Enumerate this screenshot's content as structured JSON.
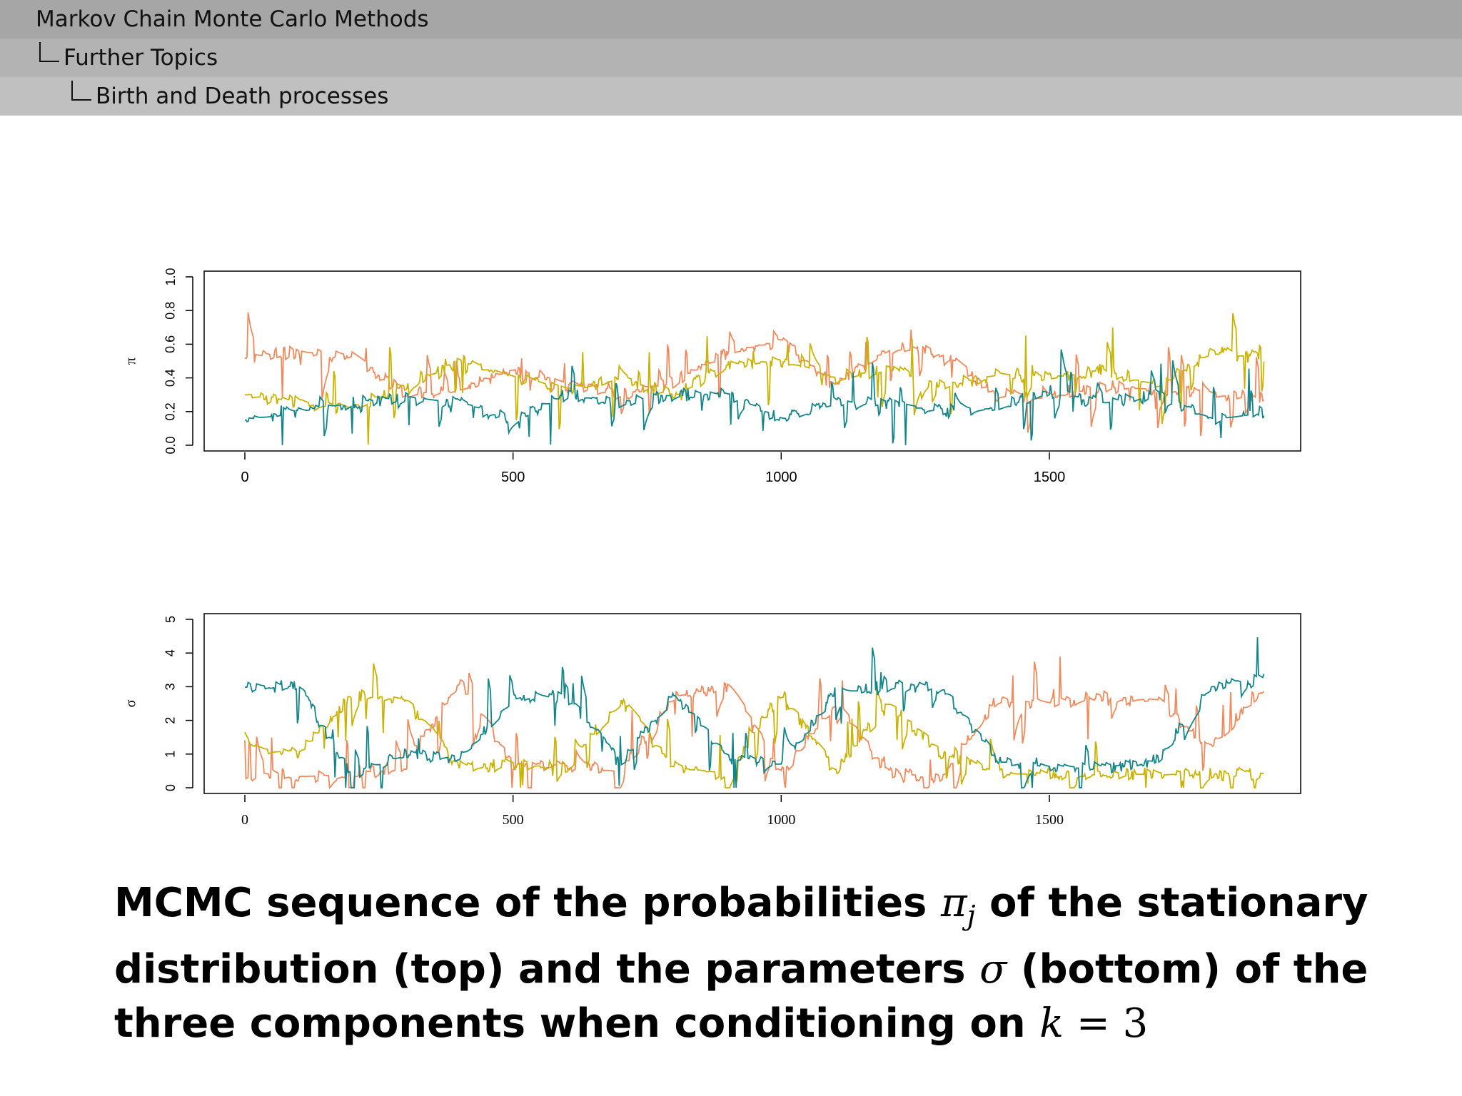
{
  "header": {
    "section": "Markov Chain Monte Carlo Methods",
    "subsection": "Further Topics",
    "subsubsection": "Birth and Death processes"
  },
  "caption": {
    "part1": "MCMC sequence of the probabilities ",
    "pi_sym": "π",
    "pi_sub": "j",
    "part2": " of the stationary distribution (top) and the parameters ",
    "sigma_sym": "σ",
    "part3": " (bottom) of the three components when conditioning on ",
    "k_sym": "k",
    "eq": " = 3"
  },
  "colors": {
    "series_1": "#f08a5d",
    "series_2": "#c9b200",
    "series_3": "#12858a",
    "axis": "#000000",
    "nav_1": "#a6a6a6",
    "nav_2": "#b3b3b3",
    "nav_3": "#c0c0c0"
  },
  "chart_data": [
    {
      "type": "line",
      "ylabel": "π",
      "xlim": [
        0,
        1900
      ],
      "ylim": [
        0,
        1.0
      ],
      "x_ticks": [
        "0",
        "500",
        "1000",
        "1500"
      ],
      "y_ticks": [
        "0.0",
        "0.2",
        "0.4",
        "0.6",
        "0.8",
        "1.0"
      ],
      "x": [
        0,
        100,
        200,
        300,
        400,
        500,
        600,
        700,
        800,
        900,
        1000,
        1100,
        1200,
        1300,
        1400,
        1500,
        1600,
        1700,
        1800,
        1900
      ],
      "series": [
        {
          "values": [
            0.52,
            0.55,
            0.53,
            0.3,
            0.33,
            0.45,
            0.36,
            0.3,
            0.38,
            0.55,
            0.62,
            0.35,
            0.58,
            0.55,
            0.3,
            0.28,
            0.35,
            0.33,
            0.3,
            0.28
          ]
        },
        {
          "values": [
            0.3,
            0.25,
            0.22,
            0.36,
            0.5,
            0.4,
            0.33,
            0.4,
            0.3,
            0.48,
            0.5,
            0.4,
            0.45,
            0.35,
            0.42,
            0.4,
            0.45,
            0.35,
            0.55,
            0.52
          ]
        },
        {
          "values": [
            0.15,
            0.2,
            0.25,
            0.28,
            0.25,
            0.15,
            0.3,
            0.25,
            0.3,
            0.3,
            0.15,
            0.25,
            0.25,
            0.2,
            0.22,
            0.32,
            0.25,
            0.3,
            0.15,
            0.2
          ]
        }
      ]
    },
    {
      "type": "line",
      "ylabel": "σ",
      "xlim": [
        0,
        1900
      ],
      "ylim": [
        0,
        5
      ],
      "x_ticks": [
        "0",
        "500",
        "1000",
        "1500"
      ],
      "y_ticks": [
        "0",
        "1",
        "2",
        "3",
        "4",
        "5"
      ],
      "x": [
        0,
        100,
        200,
        300,
        400,
        500,
        600,
        700,
        800,
        900,
        1000,
        1100,
        1200,
        1300,
        1400,
        1500,
        1600,
        1700,
        1800,
        1900
      ],
      "series": [
        {
          "values": [
            0.4,
            0.35,
            0.35,
            0.7,
            3.2,
            0.6,
            0.7,
            0.45,
            2.7,
            3.0,
            0.4,
            2.5,
            0.4,
            0.35,
            2.6,
            2.5,
            2.7,
            2.6,
            1.2,
            3.0
          ]
        },
        {
          "values": [
            1.2,
            1.0,
            2.8,
            2.6,
            0.6,
            0.7,
            0.6,
            2.6,
            0.6,
            0.4,
            2.8,
            0.45,
            2.5,
            1.0,
            0.4,
            0.4,
            0.4,
            0.4,
            0.4,
            0.4
          ]
        },
        {
          "values": [
            3.0,
            3.0,
            0.4,
            1.0,
            0.9,
            2.7,
            2.7,
            0.7,
            2.8,
            0.9,
            0.7,
            2.8,
            3.0,
            3.0,
            0.8,
            0.6,
            0.6,
            0.8,
            3.0,
            3.2
          ]
        }
      ]
    }
  ]
}
